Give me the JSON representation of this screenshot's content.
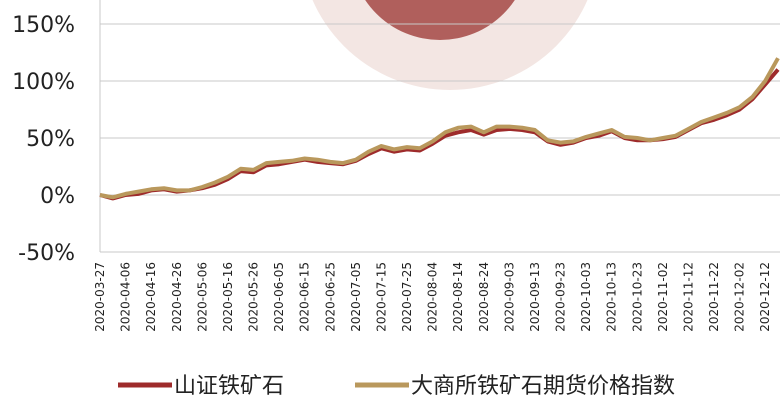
{
  "chart_data": {
    "type": "line",
    "x": [
      "2020-03-27",
      "2020-04-01",
      "2020-04-06",
      "2020-04-11",
      "2020-04-16",
      "2020-04-21",
      "2020-04-26",
      "2020-05-01",
      "2020-05-06",
      "2020-05-11",
      "2020-05-16",
      "2020-05-21",
      "2020-05-26",
      "2020-05-31",
      "2020-06-05",
      "2020-06-10",
      "2020-06-15",
      "2020-06-20",
      "2020-06-25",
      "2020-06-30",
      "2020-07-05",
      "2020-07-10",
      "2020-07-15",
      "2020-07-20",
      "2020-07-25",
      "2020-07-30",
      "2020-08-04",
      "2020-08-09",
      "2020-08-14",
      "2020-08-19",
      "2020-08-24",
      "2020-08-29",
      "2020-09-03",
      "2020-09-08",
      "2020-09-13",
      "2020-09-18",
      "2020-09-23",
      "2020-09-28",
      "2020-10-03",
      "2020-10-08",
      "2020-10-13",
      "2020-10-18",
      "2020-10-23",
      "2020-10-28",
      "2020-11-02",
      "2020-11-07",
      "2020-11-12",
      "2020-11-17",
      "2020-11-22",
      "2020-11-27",
      "2020-12-02",
      "2020-12-07",
      "2020-12-12",
      "2020-12-17"
    ],
    "series": [
      {
        "name": "山证铁矿石",
        "color": "#9e2b2b",
        "values": [
          0,
          -3,
          0,
          1,
          4,
          5,
          3,
          4,
          6,
          9,
          14,
          21,
          20,
          26,
          27,
          29,
          31,
          29,
          28,
          27,
          30,
          36,
          41,
          38,
          40,
          39,
          45,
          52,
          55,
          57,
          53,
          57,
          58,
          57,
          55,
          47,
          44,
          46,
          50,
          52,
          56,
          50,
          48,
          48,
          49,
          51,
          57,
          63,
          66,
          70,
          75,
          84,
          97,
          110
        ]
      },
      {
        "name": "大商所铁矿石期货价格指数",
        "color": "#b9985c",
        "values": [
          0,
          -2,
          1,
          3,
          5,
          6,
          4,
          4,
          7,
          11,
          16,
          23,
          22,
          28,
          29,
          30,
          32,
          31,
          29,
          28,
          31,
          38,
          43,
          40,
          42,
          41,
          47,
          55,
          59,
          60,
          55,
          60,
          60,
          59,
          57,
          48,
          46,
          47,
          51,
          54,
          57,
          51,
          50,
          48,
          50,
          52,
          58,
          64,
          68,
          72,
          77,
          86,
          100,
          120
        ]
      }
    ],
    "xlim": [
      "2020-03-27",
      "2020-12-17"
    ],
    "xticks": [
      "2020-03-27",
      "2020-04-06",
      "2020-04-16",
      "2020-04-26",
      "2020-05-06",
      "2020-05-16",
      "2020-05-26",
      "2020-06-05",
      "2020-06-15",
      "2020-06-25",
      "2020-07-05",
      "2020-07-15",
      "2020-07-25",
      "2020-08-04",
      "2020-08-14",
      "2020-08-24",
      "2020-09-03",
      "2020-09-13",
      "2020-09-23",
      "2020-10-03",
      "2020-10-13",
      "2020-10-23",
      "2020-11-02",
      "2020-11-12",
      "2020-11-22",
      "2020-12-02",
      "2020-12-12"
    ],
    "ylim": [
      -50,
      150
    ],
    "yticks": [
      {
        "value": -50,
        "label": "-50%"
      },
      {
        "value": 0,
        "label": "0%"
      },
      {
        "value": 50,
        "label": "50%"
      },
      {
        "value": 100,
        "label": "100%"
      },
      {
        "value": 150,
        "label": "150%"
      }
    ],
    "grid": true,
    "legend": "bottom"
  }
}
